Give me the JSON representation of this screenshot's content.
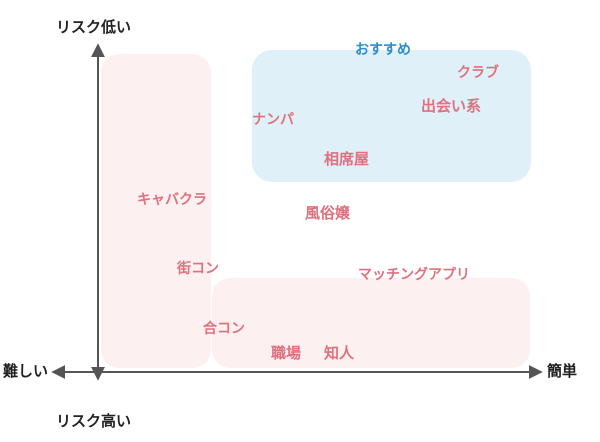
{
  "axes": {
    "top": "リスク低い",
    "bottom": "リスク高い",
    "left": "難しい",
    "right": "簡単"
  },
  "zones": {
    "recommended": {
      "title": "おすすめ",
      "color": "#dff0f8",
      "title_color": "#2b8fc9"
    },
    "pink_color": "#fdf0f0"
  },
  "items": {
    "club": "クラブ",
    "deai": "出会い系",
    "nanpa": "ナンパ",
    "aisekiya": "相席屋",
    "kyabakura": "キャバクラ",
    "fuzokujo": "風俗嬢",
    "machikon": "街コン",
    "matching": "マッチングアプリ",
    "goukon": "合コン",
    "shokuba": "職場",
    "chijin": "知人"
  },
  "colors": {
    "item_text": "#e0707e",
    "axis_line": "#555555"
  }
}
